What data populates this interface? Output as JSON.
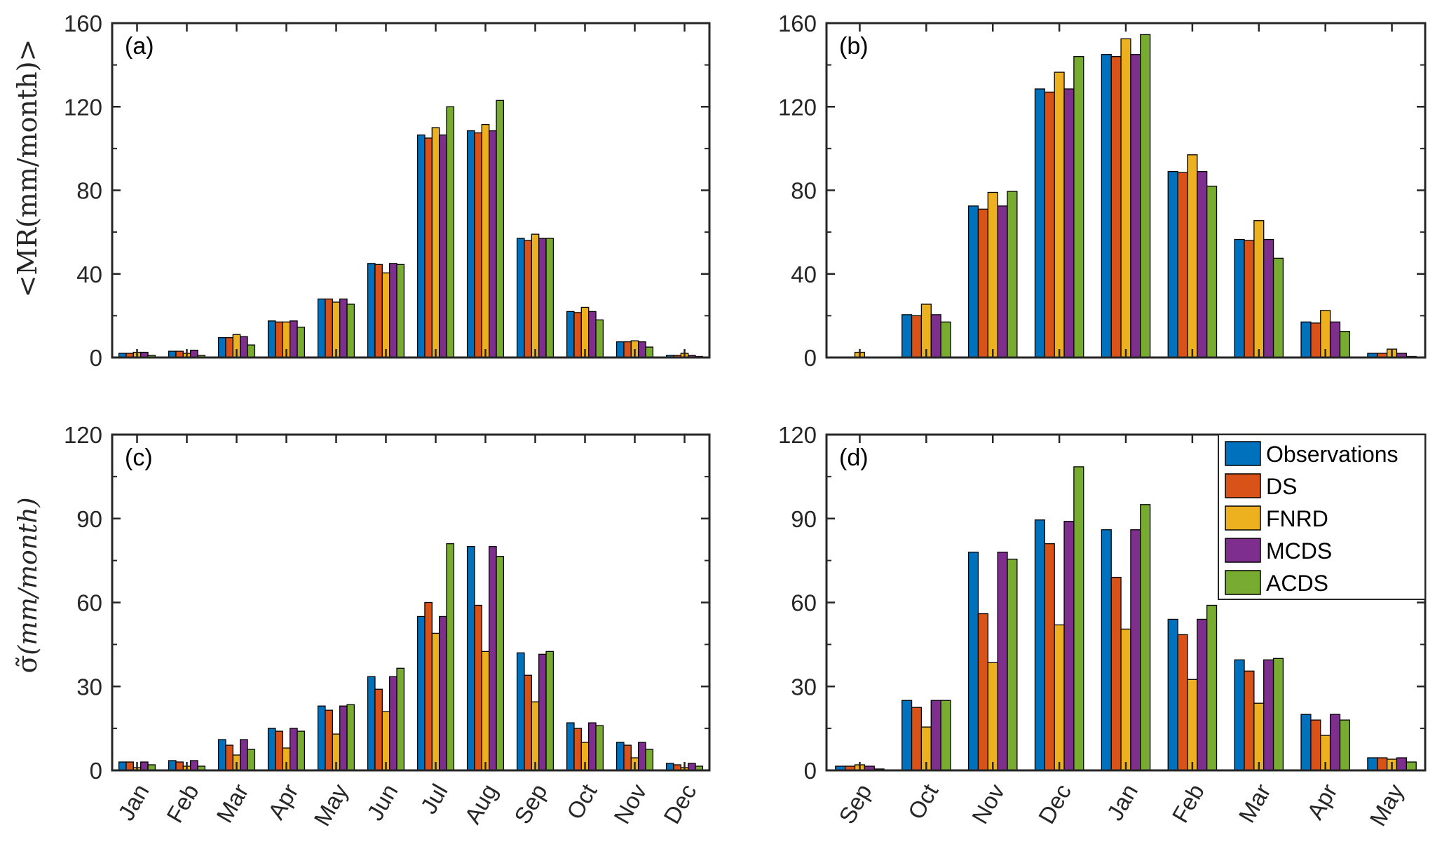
{
  "colors": {
    "Observations": "#0072BD",
    "DS": "#D95319",
    "FNRD": "#EDB120",
    "MCDS": "#7E2F8E",
    "ACDS": "#77AC30"
  },
  "legend": [
    "Observations",
    "DS",
    "FNRD",
    "MCDS",
    "ACDS"
  ],
  "ylabels": {
    "top": "<MR(mm/month)>",
    "bottom_symbol": "σ̃",
    "bottom_rest": "(mm/month)"
  },
  "chart_data": [
    {
      "label": "(a)",
      "type": "bar",
      "categories": [
        "Jan",
        "Feb",
        "Mar",
        "Apr",
        "May",
        "Jun",
        "Jul",
        "Aug",
        "Sep",
        "Oct",
        "Nov",
        "Dec"
      ],
      "ylim": [
        0,
        160
      ],
      "yticks": [
        0,
        40,
        80,
        120,
        160
      ],
      "ylabel": "<MR(mm/month)>",
      "series": [
        {
          "name": "Observations",
          "values": [
            2,
            3,
            9.5,
            17.5,
            28,
            45,
            106.5,
            108.5,
            57,
            22,
            7.5,
            1
          ]
        },
        {
          "name": "DS",
          "values": [
            2,
            3,
            9.5,
            17,
            28,
            44.5,
            105,
            107.5,
            56,
            21.5,
            7.5,
            1
          ]
        },
        {
          "name": "FNRD",
          "values": [
            2.5,
            2,
            11,
            17,
            26.5,
            40.5,
            110,
            111.5,
            59,
            24,
            8,
            2
          ]
        },
        {
          "name": "MCDS",
          "values": [
            2.5,
            3.5,
            10,
            17.5,
            28,
            45,
            106.5,
            108.5,
            57,
            22,
            7.5,
            1
          ]
        },
        {
          "name": "ACDS",
          "values": [
            1,
            1,
            6,
            14.5,
            25.5,
            44.5,
            120,
            123,
            57,
            18,
            5,
            0.5
          ]
        }
      ]
    },
    {
      "label": "(b)",
      "type": "bar",
      "categories": [
        "Sep",
        "Oct",
        "Nov",
        "Dec",
        "Jan",
        "Feb",
        "Mar",
        "Apr",
        "May"
      ],
      "ylim": [
        0,
        160
      ],
      "yticks": [
        0,
        40,
        80,
        120,
        160
      ],
      "series": [
        {
          "name": "Observations",
          "values": [
            0,
            20.5,
            72.5,
            128.5,
            145,
            89,
            56.5,
            17,
            2
          ]
        },
        {
          "name": "DS",
          "values": [
            0,
            20,
            71,
            127,
            144,
            88.5,
            56,
            16.5,
            2
          ]
        },
        {
          "name": "FNRD",
          "values": [
            2.5,
            25.5,
            79,
            136.5,
            152.5,
            97,
            65.5,
            22.5,
            4
          ]
        },
        {
          "name": "MCDS",
          "values": [
            0,
            20.5,
            72.5,
            128.5,
            145,
            89,
            56.5,
            17,
            2
          ]
        },
        {
          "name": "ACDS",
          "values": [
            0,
            17,
            79.5,
            144,
            154.5,
            82,
            47.5,
            12.5,
            0.5
          ]
        }
      ]
    },
    {
      "label": "(c)",
      "type": "bar",
      "categories": [
        "Jan",
        "Feb",
        "Mar",
        "Apr",
        "May",
        "Jun",
        "Jul",
        "Aug",
        "Sep",
        "Oct",
        "Nov",
        "Dec"
      ],
      "ylim": [
        0,
        120
      ],
      "yticks": [
        0,
        30,
        60,
        90,
        120
      ],
      "ylabel": "σ̃(mm/month)",
      "series": [
        {
          "name": "Observations",
          "values": [
            3,
            3.5,
            11,
            15,
            23,
            33.5,
            55,
            80,
            42,
            17,
            10,
            2.5
          ]
        },
        {
          "name": "DS",
          "values": [
            3,
            3,
            9,
            14,
            21.5,
            29,
            60,
            59,
            34,
            15,
            9,
            2
          ]
        },
        {
          "name": "FNRD",
          "values": [
            1,
            1.5,
            5.5,
            8,
            13,
            21,
            49,
            42.5,
            24.5,
            10,
            4.5,
            1
          ]
        },
        {
          "name": "MCDS",
          "values": [
            3,
            3.5,
            11,
            15,
            23,
            33.5,
            55,
            80,
            41.5,
            17,
            10,
            2.5
          ]
        },
        {
          "name": "ACDS",
          "values": [
            2,
            1.5,
            7.5,
            14,
            23.5,
            36.5,
            81,
            76.5,
            42.5,
            16,
            7.5,
            1.5
          ]
        }
      ]
    },
    {
      "label": "(d)",
      "type": "bar",
      "categories": [
        "Sep",
        "Oct",
        "Nov",
        "Dec",
        "Jan",
        "Feb",
        "Mar",
        "Apr",
        "May"
      ],
      "ylim": [
        0,
        120
      ],
      "yticks": [
        0,
        30,
        60,
        90,
        120
      ],
      "legend_position": "top-right",
      "series": [
        {
          "name": "Observations",
          "values": [
            1.5,
            25,
            78,
            89.5,
            86,
            54,
            39.5,
            20,
            4.5
          ]
        },
        {
          "name": "DS",
          "values": [
            1.5,
            22.5,
            56,
            81,
            69,
            48.5,
            35.5,
            18,
            4.5
          ]
        },
        {
          "name": "FNRD",
          "values": [
            2,
            15.5,
            38.5,
            52,
            50.5,
            32.5,
            24,
            12.5,
            4
          ]
        },
        {
          "name": "MCDS",
          "values": [
            1.5,
            25,
            78,
            89,
            86,
            54,
            39.5,
            20,
            4.5
          ]
        },
        {
          "name": "ACDS",
          "values": [
            0.5,
            25,
            75.5,
            108.5,
            95,
            59,
            40,
            18,
            3
          ]
        }
      ]
    }
  ]
}
